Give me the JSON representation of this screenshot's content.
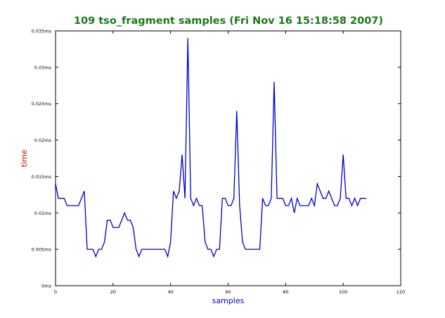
{
  "chart_data": {
    "type": "line",
    "title": "109 tso_fragment samples (Fri Nov 16 15:18:58 2007)",
    "xlabel": "samples",
    "ylabel": "time",
    "xlim": [
      0,
      120
    ],
    "ylim": [
      0,
      0.035
    ],
    "x_ticks": [
      0,
      20,
      40,
      60,
      80,
      100,
      120
    ],
    "x_tick_labels": [
      "0",
      "20",
      "40",
      "60",
      "80",
      "100",
      "120"
    ],
    "y_ticks": [
      0,
      0.005,
      0.01,
      0.015,
      0.02,
      0.025,
      0.03,
      0.035
    ],
    "y_tick_labels": [
      "0ms",
      "0.005ms",
      "0.01ms",
      "0.015ms",
      "0.02ms",
      "0.025ms",
      "0.03ms",
      "0.035ms"
    ],
    "grid": false,
    "legend": "none",
    "colors": {
      "title": "#1a7a1a",
      "ylabel": "#cc0000",
      "xlabel": "#0000cc",
      "line": "#0000cc",
      "axes": "#000000"
    },
    "series": [
      {
        "values": [
          0.014,
          0.012,
          0.012,
          0.012,
          0.011,
          0.011,
          0.011,
          0.011,
          0.011,
          0.012,
          0.013,
          0.005,
          0.005,
          0.005,
          0.004,
          0.005,
          0.005,
          0.006,
          0.009,
          0.009,
          0.008,
          0.008,
          0.008,
          0.009,
          0.01,
          0.009,
          0.009,
          0.008,
          0.005,
          0.004,
          0.005,
          0.005,
          0.005,
          0.005,
          0.005,
          0.005,
          0.005,
          0.005,
          0.005,
          0.004,
          0.006,
          0.013,
          0.012,
          0.013,
          0.018,
          0.012,
          0.034,
          0.012,
          0.011,
          0.012,
          0.011,
          0.011,
          0.006,
          0.005,
          0.005,
          0.004,
          0.005,
          0.005,
          0.012,
          0.012,
          0.011,
          0.011,
          0.012,
          0.024,
          0.011,
          0.006,
          0.005,
          0.005,
          0.005,
          0.005,
          0.005,
          0.005,
          0.012,
          0.011,
          0.011,
          0.012,
          0.028,
          0.012,
          0.012,
          0.012,
          0.011,
          0.011,
          0.012,
          0.01,
          0.012,
          0.011,
          0.011,
          0.011,
          0.011,
          0.012,
          0.011,
          0.014,
          0.013,
          0.012,
          0.012,
          0.013,
          0.012,
          0.011,
          0.011,
          0.012,
          0.018,
          0.012,
          0.012,
          0.011,
          0.012,
          0.011,
          0.012,
          0.012,
          0.012
        ]
      }
    ]
  }
}
